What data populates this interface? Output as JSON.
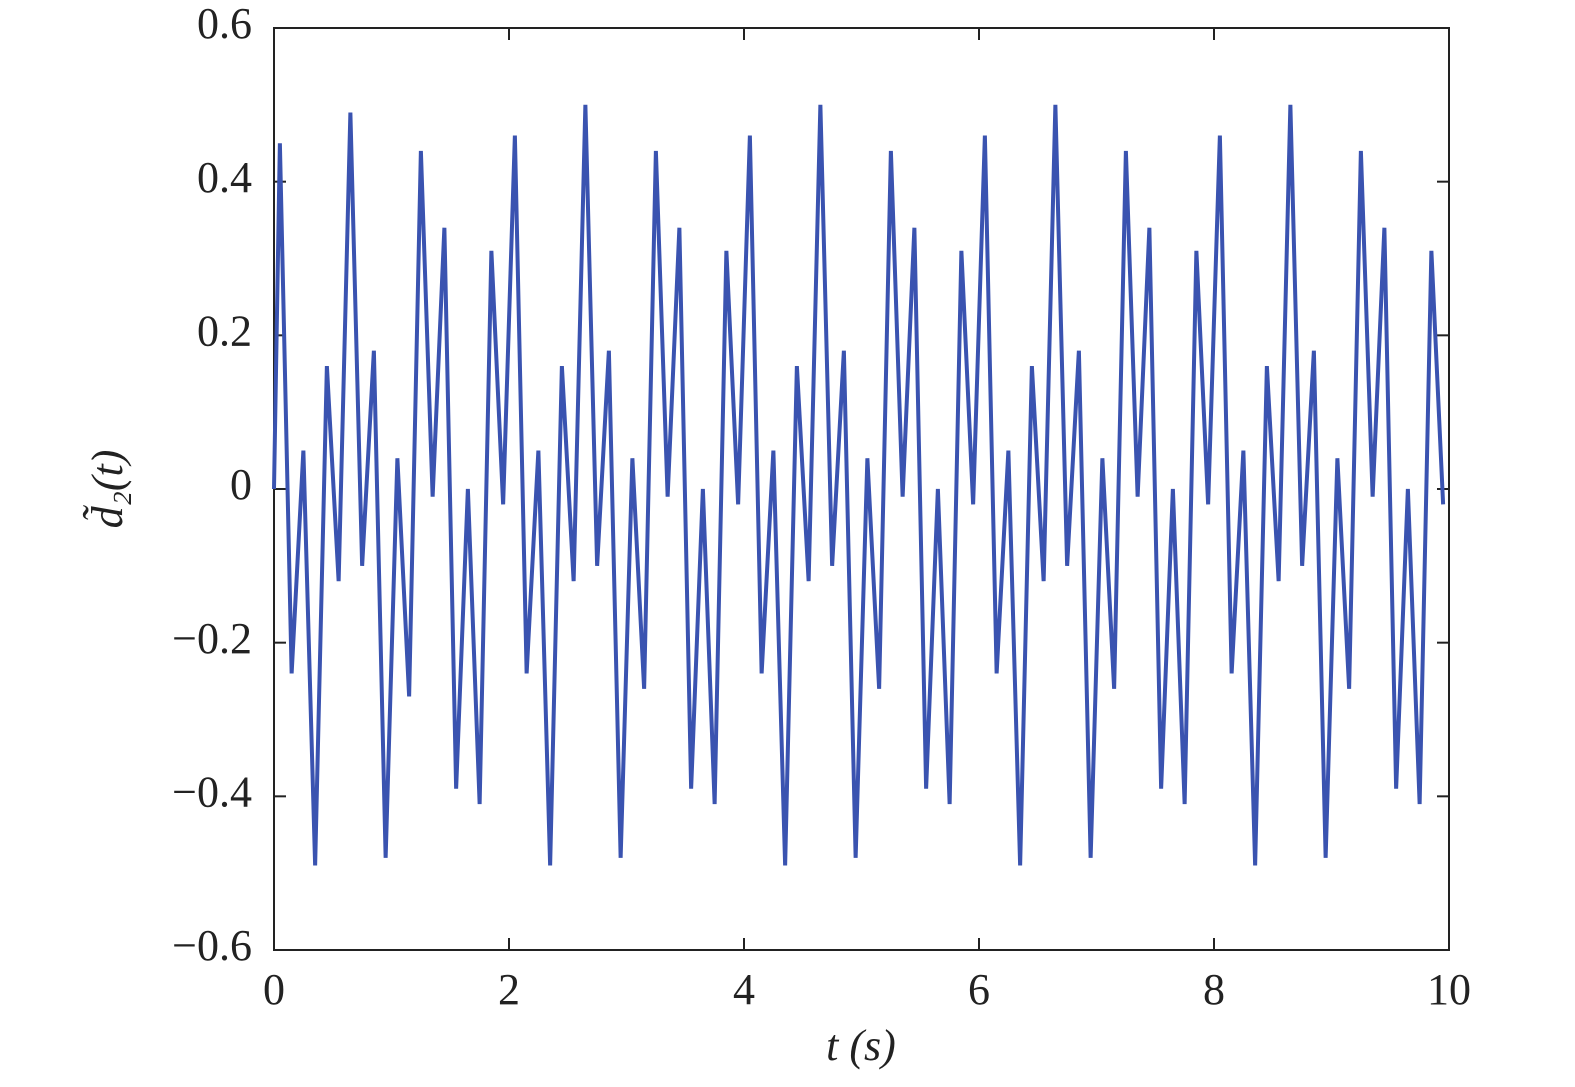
{
  "chart_data": {
    "type": "line",
    "xlabel": "t (s)",
    "ylabel": "d̃₂(t)",
    "x": [
      0,
      0.05,
      0.15,
      0.25,
      0.35,
      0.45,
      0.55,
      0.65,
      0.75,
      0.85,
      0.95,
      1.05,
      1.15,
      1.25,
      1.35,
      1.45,
      1.55,
      1.65,
      1.75,
      1.85,
      1.95,
      2.05,
      2.15,
      2.25,
      2.35,
      2.45,
      2.55,
      2.65,
      2.75,
      2.85,
      2.95,
      3.05,
      3.15,
      3.25,
      3.35,
      3.45,
      3.55,
      3.65,
      3.75,
      3.85,
      3.95,
      4.05,
      4.15,
      4.25,
      4.35,
      4.45,
      4.55,
      4.65,
      4.75,
      4.85,
      4.95,
      5.05,
      5.15,
      5.25,
      5.35,
      5.45,
      5.55,
      5.65,
      5.75,
      5.85,
      5.95,
      6.05,
      6.15,
      6.25,
      6.35,
      6.45,
      6.55,
      6.65,
      6.75,
      6.85,
      6.95,
      7.05,
      7.15,
      7.25,
      7.35,
      7.45,
      7.55,
      7.65,
      7.75,
      7.85,
      7.95,
      8.05,
      8.15,
      8.25,
      8.35,
      8.45,
      8.55,
      8.65,
      8.75,
      8.85,
      8.95,
      9.05,
      9.15,
      9.25,
      9.35,
      9.45,
      9.55,
      9.65,
      9.75,
      9.85,
      9.95
    ],
    "series": [
      {
        "color": "#3a53b0",
        "values": [
          0,
          0.45,
          -0.24,
          0.05,
          -0.49,
          0.16,
          -0.12,
          0.49,
          -0.1,
          0.18,
          -0.48,
          0.04,
          -0.27,
          0.44,
          -0.01,
          0.34,
          -0.39,
          0,
          -0.41,
          0.31,
          -0.02,
          0.46,
          -0.24,
          0.05,
          -0.49,
          0.16,
          -0.12,
          0.5,
          -0.1,
          0.18,
          -0.48,
          0.04,
          -0.26,
          0.44,
          -0.01,
          0.34,
          -0.39,
          0,
          -0.41,
          0.31,
          -0.02,
          0.46,
          -0.24,
          0.05,
          -0.49,
          0.16,
          -0.12,
          0.5,
          -0.1,
          0.18,
          -0.48,
          0.04,
          -0.26,
          0.44,
          -0.01,
          0.34,
          -0.39,
          0,
          -0.41,
          0.31,
          -0.02,
          0.46,
          -0.24,
          0.05,
          -0.49,
          0.16,
          -0.12,
          0.5,
          -0.1,
          0.18,
          -0.48,
          0.04,
          -0.26,
          0.44,
          -0.01,
          0.34,
          -0.39,
          0,
          -0.41,
          0.31,
          -0.02,
          0.46,
          -0.24,
          0.05,
          -0.49,
          0.16,
          -0.12,
          0.5,
          -0.1,
          0.18,
          -0.48,
          0.04,
          -0.26,
          0.44,
          -0.01,
          0.34,
          -0.39,
          0,
          -0.41,
          0.31,
          -0.02
        ]
      }
    ],
    "xlim": [
      0,
      10
    ],
    "xticks": [
      0,
      2,
      4,
      6,
      8,
      10
    ],
    "ylim": [
      -0.6,
      0.6
    ],
    "yticks": [
      {
        "value": -0.6,
        "label": "−0.6"
      },
      {
        "value": -0.4,
        "label": "−0.4"
      },
      {
        "value": -0.2,
        "label": "−0.2"
      },
      0,
      0.2,
      0.4,
      0.6
    ],
    "grid": false
  }
}
